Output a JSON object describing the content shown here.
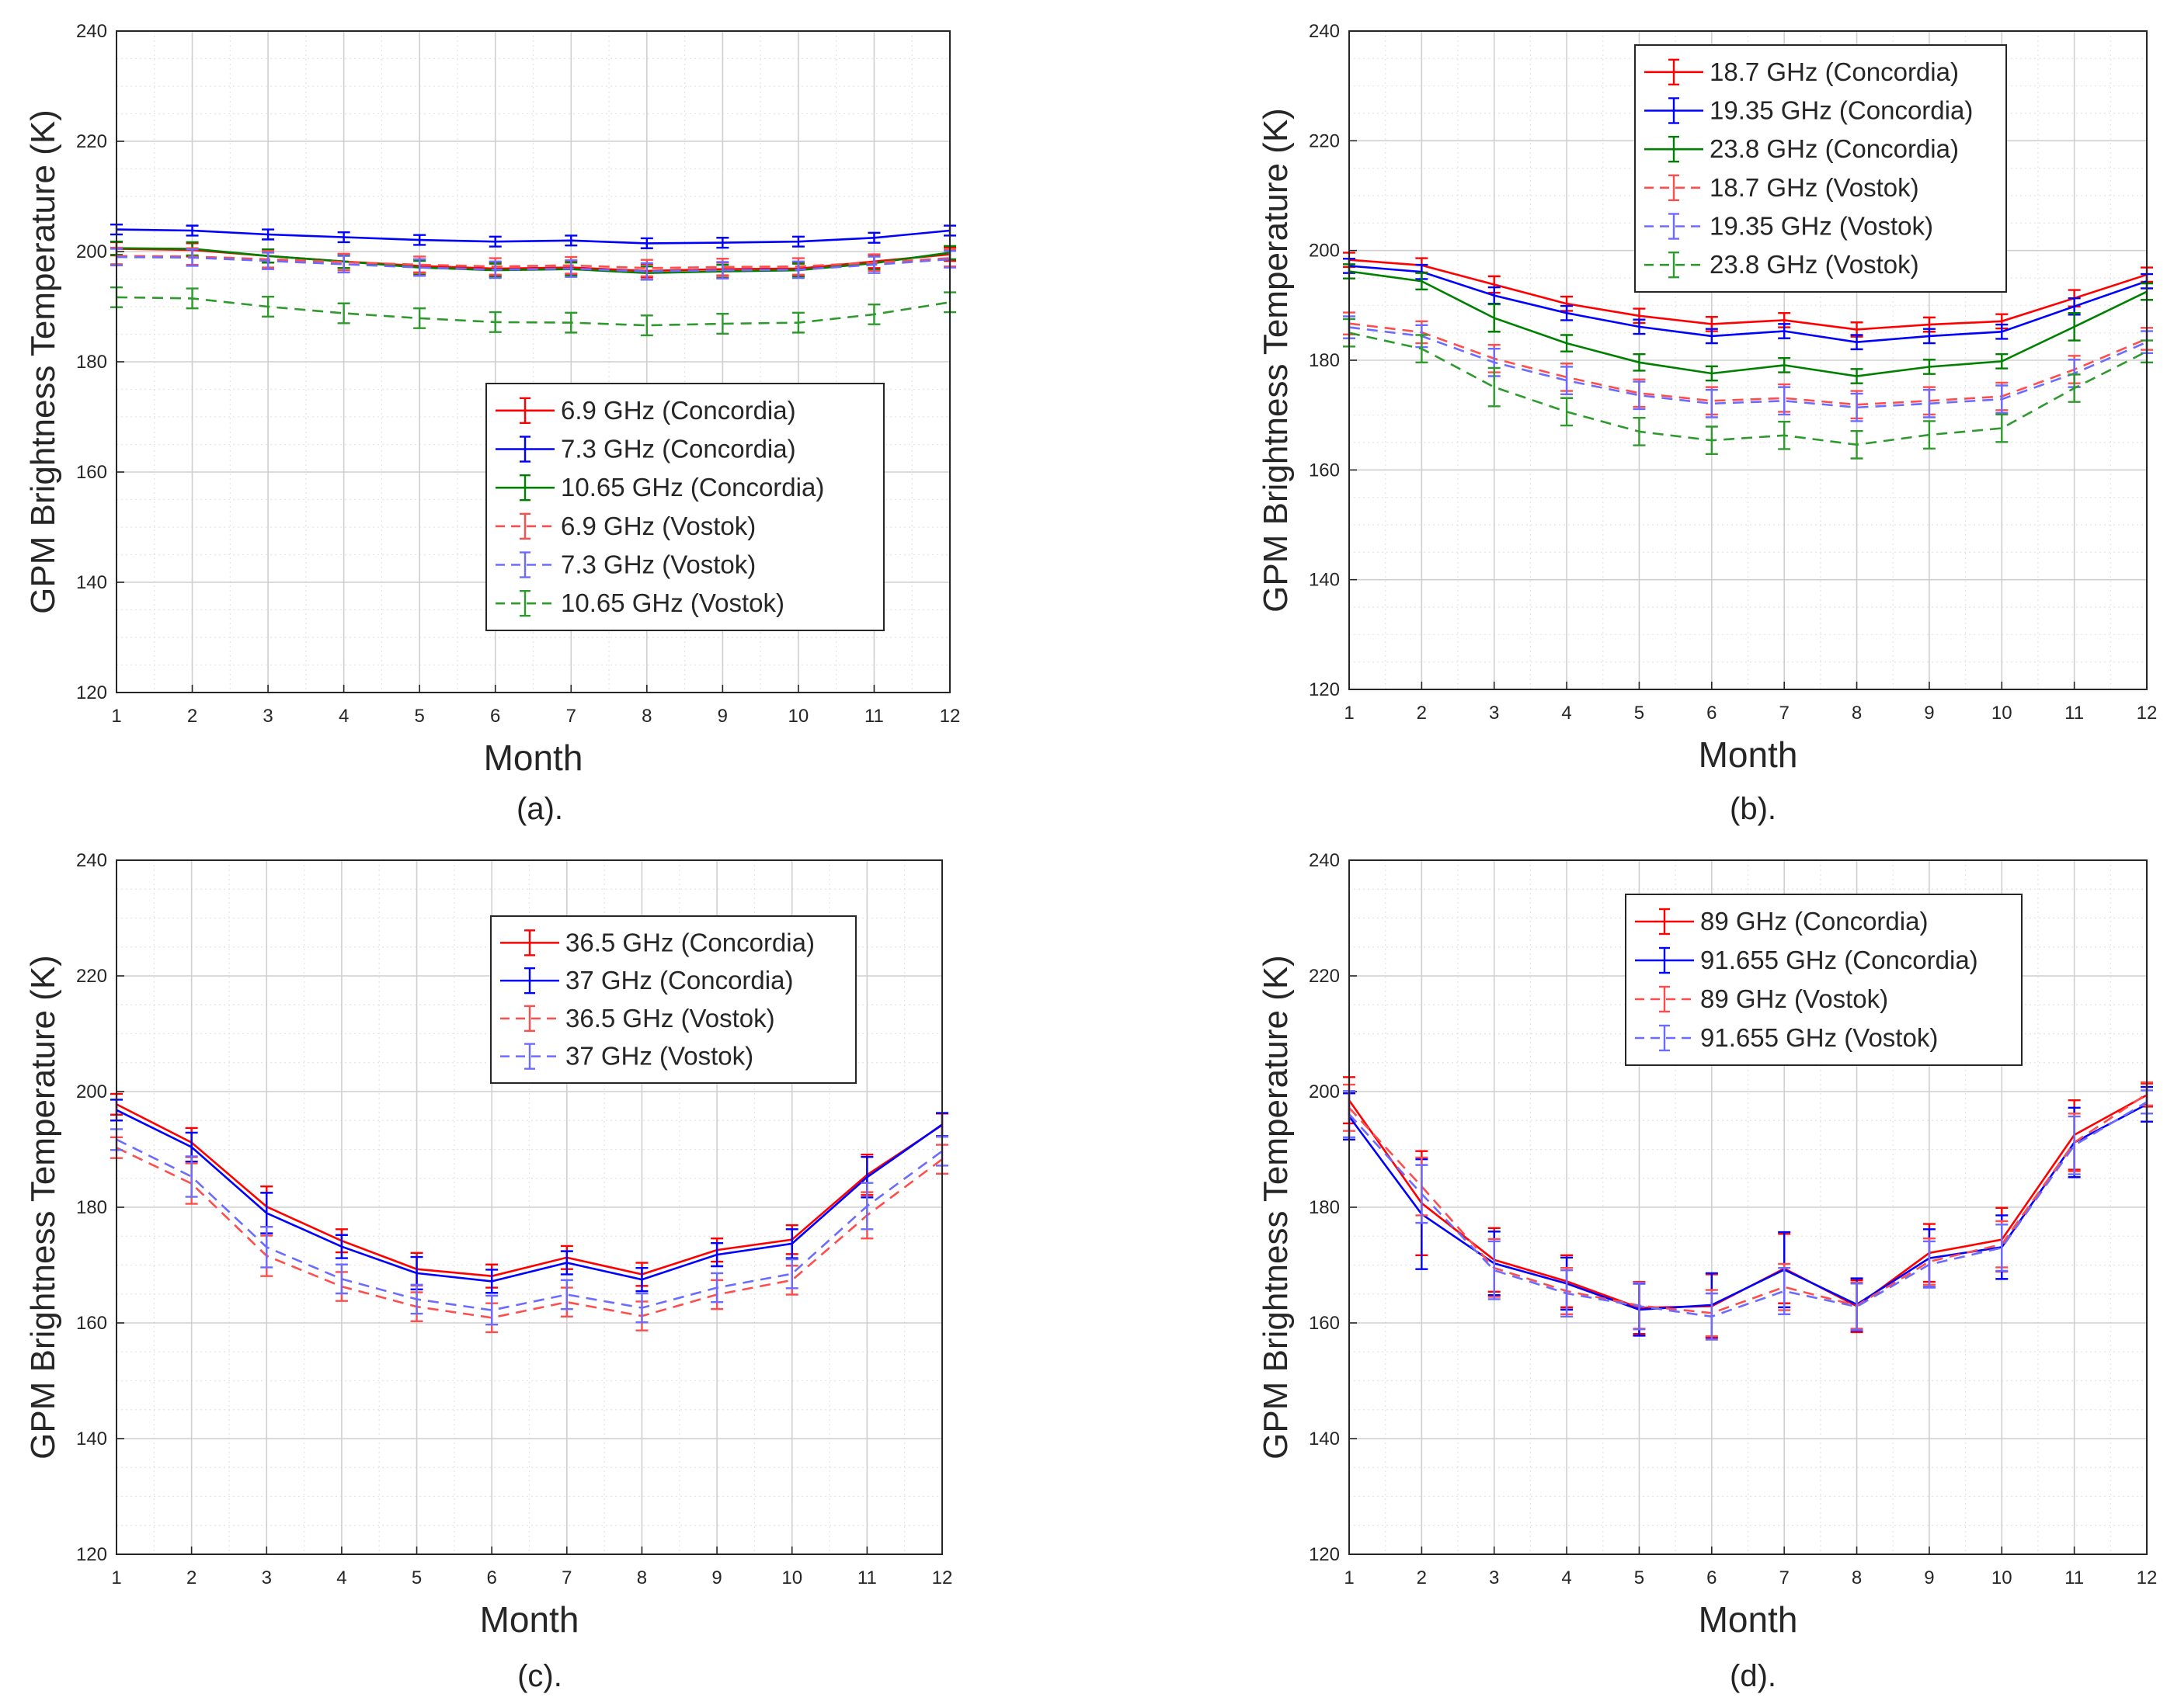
{
  "figure": {
    "charts": [
      {
        "caption": "(a)."
      },
      {
        "caption": "(b)."
      },
      {
        "caption": "(c)."
      },
      {
        "caption": "(d)."
      }
    ]
  },
  "chart_data": [
    {
      "type": "line",
      "panel": "(a).",
      "title": "",
      "xlabel": "Month",
      "ylabel": "GPM Brightness Temperature (K)",
      "x": [
        1,
        2,
        3,
        4,
        5,
        6,
        7,
        8,
        9,
        10,
        11,
        12
      ],
      "xlim": [
        1,
        12
      ],
      "ylim": [
        120,
        240
      ],
      "yticks": [
        120,
        140,
        160,
        180,
        200,
        220,
        240
      ],
      "grid": true,
      "legend_position": "center-right",
      "series": [
        {
          "name": "6.9 GHz (Concordia)",
          "color": "#ff0000",
          "dash": false,
          "values": [
            200.5,
            200.3,
            199.2,
            198.2,
            197.4,
            196.9,
            197.1,
            196.5,
            196.8,
            196.9,
            198.2,
            199.5
          ],
          "error": [
            1.2,
            1.2,
            1.2,
            1.2,
            1.2,
            1.2,
            1.2,
            1.2,
            1.2,
            1.2,
            1.2,
            1.2
          ]
        },
        {
          "name": "7.3 GHz (Concordia)",
          "color": "#0000ff",
          "dash": false,
          "values": [
            204,
            203.8,
            203.1,
            202.6,
            202.1,
            201.8,
            202,
            201.5,
            201.6,
            201.8,
            202.5,
            203.8
          ],
          "error": [
            0.9,
            0.9,
            0.9,
            0.9,
            0.9,
            0.9,
            0.9,
            0.9,
            0.9,
            0.9,
            0.9,
            0.9
          ]
        },
        {
          "name": "10.65 GHz (Concordia)",
          "color": "#008000",
          "dash": false,
          "values": [
            200.6,
            200.5,
            199.2,
            198.2,
            197.1,
            196.6,
            196.8,
            196.1,
            196.4,
            196.6,
            197.9,
            199.8
          ],
          "error": [
            1.2,
            1.2,
            1.2,
            1.2,
            1.2,
            1.2,
            1.2,
            1.2,
            1.2,
            1.2,
            1.2,
            1.2
          ]
        },
        {
          "name": "6.9 GHz (Vostok)",
          "color": "#ff4d4d",
          "dash": true,
          "values": [
            199.2,
            199.1,
            198.6,
            198.1,
            197.6,
            197.3,
            197.5,
            197,
            197.2,
            197.3,
            198,
            198.8
          ],
          "error": [
            1.5,
            1.5,
            1.5,
            1.5,
            1.5,
            1.5,
            1.5,
            1.5,
            1.5,
            1.5,
            1.5,
            1.5
          ]
        },
        {
          "name": "7.3 GHz (Vostok)",
          "color": "#6b6bff",
          "dash": true,
          "values": [
            199,
            198.9,
            198.3,
            197.7,
            197.1,
            196.7,
            196.9,
            196.4,
            196.6,
            196.7,
            197.6,
            198.6
          ],
          "error": [
            1.5,
            1.5,
            1.5,
            1.5,
            1.5,
            1.5,
            1.5,
            1.5,
            1.5,
            1.5,
            1.5,
            1.5
          ]
        },
        {
          "name": "10.65 GHz (Vostok)",
          "color": "#2e9a2e",
          "dash": true,
          "values": [
            191.7,
            191.5,
            190,
            188.8,
            187.9,
            187.2,
            187.1,
            186.6,
            186.9,
            187.1,
            188.6,
            190.8
          ],
          "error": [
            1.8,
            1.8,
            1.8,
            1.8,
            1.8,
            1.8,
            1.8,
            1.8,
            1.8,
            1.8,
            1.8,
            1.8
          ]
        }
      ]
    },
    {
      "type": "line",
      "panel": "(b).",
      "title": "",
      "xlabel": "Month",
      "ylabel": "GPM Brightness Temperature (K)",
      "x": [
        1,
        2,
        3,
        4,
        5,
        6,
        7,
        8,
        9,
        10,
        11,
        12
      ],
      "xlim": [
        1,
        12
      ],
      "ylim": [
        120,
        240
      ],
      "yticks": [
        120,
        140,
        160,
        180,
        200,
        220,
        240
      ],
      "grid": true,
      "legend_position": "top-center",
      "series": [
        {
          "name": "18.7 GHz (Concordia)",
          "color": "#ff0000",
          "dash": false,
          "values": [
            198.3,
            197.3,
            193.8,
            190.3,
            188.1,
            186.6,
            187.3,
            185.6,
            186.5,
            187.1,
            191.3,
            195.6
          ],
          "error": [
            1.3,
            1.3,
            1.5,
            1.3,
            1.3,
            1.3,
            1.3,
            1.3,
            1.3,
            1.3,
            1.5,
            1.3
          ]
        },
        {
          "name": "19.35 GHz (Concordia)",
          "color": "#0000ff",
          "dash": false,
          "values": [
            197.2,
            196.1,
            191.8,
            188.6,
            186.1,
            184.4,
            185.3,
            183.3,
            184.4,
            185.2,
            189.8,
            194.4
          ],
          "error": [
            1.3,
            1.3,
            1.5,
            1.3,
            1.3,
            1.3,
            1.3,
            1.3,
            1.3,
            1.3,
            1.5,
            1.3
          ]
        },
        {
          "name": "23.8 GHz (Concordia)",
          "color": "#008000",
          "dash": false,
          "values": [
            196.2,
            194.4,
            187.7,
            183.1,
            179.6,
            177.6,
            179.1,
            177.1,
            178.8,
            179.8,
            186.1,
            192.5
          ],
          "error": [
            1.3,
            1.5,
            2.5,
            1.5,
            1.5,
            1.3,
            1.3,
            1.3,
            1.3,
            1.3,
            2.5,
            1.5
          ]
        },
        {
          "name": "18.7 GHz (Vostok)",
          "color": "#ff4d4d",
          "dash": true,
          "values": [
            186.7,
            185.1,
            180.3,
            176.9,
            174,
            172.6,
            173.1,
            171.9,
            172.6,
            173.4,
            178.3,
            183.9
          ],
          "error": [
            2,
            2,
            2.5,
            2.5,
            2.5,
            2.5,
            2.5,
            2.5,
            2.5,
            2.5,
            2.5,
            2
          ]
        },
        {
          "name": "19.35 GHz (Vostok)",
          "color": "#6b6bff",
          "dash": true,
          "values": [
            186,
            184.4,
            179.6,
            176.3,
            173.6,
            172.1,
            172.6,
            171.4,
            172.1,
            172.9,
            177.6,
            183.3
          ],
          "error": [
            2,
            2,
            2.5,
            2.5,
            2.5,
            2.5,
            2.5,
            2.5,
            2.5,
            2.5,
            2.5,
            2
          ]
        },
        {
          "name": "23.8 GHz (Vostok)",
          "color": "#2e9a2e",
          "dash": true,
          "values": [
            185,
            182.1,
            175.1,
            170.6,
            167,
            165.4,
            166.3,
            164.6,
            166.4,
            167.6,
            174.9,
            181.6
          ],
          "error": [
            2.5,
            2.5,
            3.5,
            2.5,
            2.5,
            2.5,
            2.5,
            2.5,
            2.5,
            2.5,
            2.5,
            2
          ]
        }
      ]
    },
    {
      "type": "line",
      "panel": "(c).",
      "title": "",
      "xlabel": "Month",
      "ylabel": "GPM Brightness Temperature (K)",
      "x": [
        1,
        2,
        3,
        4,
        5,
        6,
        7,
        8,
        9,
        10,
        11,
        12
      ],
      "xlim": [
        1,
        12
      ],
      "ylim": [
        120,
        240
      ],
      "yticks": [
        120,
        140,
        160,
        180,
        200,
        220,
        240
      ],
      "grid": true,
      "legend_position": "top-center",
      "series": [
        {
          "name": "36.5 GHz (Concordia)",
          "color": "#ff0000",
          "dash": false,
          "values": [
            197.8,
            191.2,
            180.1,
            174.2,
            169.3,
            168.1,
            171.3,
            168.4,
            172.6,
            174.4,
            185.6,
            194.2
          ],
          "error": [
            1.8,
            2.5,
            3.5,
            2,
            2.8,
            2,
            2,
            2,
            2,
            2.5,
            3.5,
            2
          ]
        },
        {
          "name": "37 GHz (Concordia)",
          "color": "#0000ff",
          "dash": false,
          "values": [
            196.8,
            190.4,
            179,
            173.2,
            168.6,
            167.2,
            170.4,
            167.5,
            171.8,
            173.7,
            185.2,
            194.3
          ],
          "error": [
            1.8,
            2.5,
            3.5,
            2,
            2.8,
            2,
            2,
            2,
            2,
            2.5,
            3.5,
            2
          ]
        },
        {
          "name": "36.5 GHz (Vostok)",
          "color": "#ff4d4d",
          "dash": true,
          "values": [
            190.3,
            184.1,
            171.6,
            166.3,
            162.8,
            160.9,
            163.6,
            161.2,
            164.9,
            167.4,
            178.6,
            188.3
          ],
          "error": [
            1.8,
            3.5,
            3.5,
            2.5,
            2.5,
            2.5,
            2.5,
            2.5,
            2.5,
            2.5,
            4,
            2.5
          ]
        },
        {
          "name": "37 GHz (Vostok)",
          "color": "#6b6bff",
          "dash": true,
          "values": [
            191.7,
            185.3,
            173.1,
            167.6,
            164.1,
            162.2,
            164.9,
            162.6,
            166.1,
            168.5,
            180.2,
            189.7
          ],
          "error": [
            1.8,
            3.5,
            3.5,
            2.5,
            2.5,
            2.5,
            2.5,
            2.5,
            2.5,
            2.5,
            4,
            2.5
          ]
        }
      ]
    },
    {
      "type": "line",
      "panel": "(d).",
      "title": "",
      "xlabel": "Month",
      "ylabel": "GPM Brightness Temperature (K)",
      "x": [
        1,
        2,
        3,
        4,
        5,
        6,
        7,
        8,
        9,
        10,
        11,
        12
      ],
      "xlim": [
        1,
        12
      ],
      "ylim": [
        120,
        240
      ],
      "yticks": [
        120,
        140,
        160,
        180,
        200,
        220,
        240
      ],
      "grid": true,
      "legend_position": "top-center",
      "series": [
        {
          "name": "89 GHz (Concordia)",
          "color": "#ff0000",
          "dash": false,
          "values": [
            198.5,
            180.7,
            170.9,
            167.2,
            162.6,
            162.9,
            169.4,
            162.9,
            172.1,
            174.4,
            192.5,
            199.4
          ],
          "error": [
            4,
            9,
            5.5,
            4.5,
            4.5,
            5.5,
            6,
            4.5,
            5,
            5.5,
            6,
            2
          ]
        },
        {
          "name": "91.655 GHz (Concordia)",
          "color": "#0000ff",
          "dash": false,
          "values": [
            195.7,
            178.8,
            170.3,
            166.8,
            162.3,
            163.1,
            169.2,
            163.2,
            171.2,
            173.1,
            191.2,
            197.8
          ],
          "error": [
            4,
            9.5,
            5.5,
            4.5,
            4.5,
            5.5,
            6.5,
            4.5,
            5,
            5.5,
            6,
            3
          ]
        },
        {
          "name": "89 GHz (Vostok)",
          "color": "#ff4d4d",
          "dash": true,
          "values": [
            197.2,
            183.6,
            169.5,
            165.5,
            163,
            161.7,
            166.2,
            163,
            170.6,
            173.6,
            191.2,
            199.6
          ],
          "error": [
            4,
            5,
            5,
            4,
            4,
            4,
            4,
            4,
            4,
            4,
            5,
            2
          ]
        },
        {
          "name": "91.655 GHz (Vostok)",
          "color": "#6b6bff",
          "dash": true,
          "values": [
            196.1,
            182.3,
            169.1,
            165.1,
            162.9,
            161.1,
            165.5,
            162.8,
            170.1,
            173,
            190.7,
            198.2
          ],
          "error": [
            4,
            5,
            5,
            4,
            4,
            4,
            4,
            4,
            4,
            4,
            5,
            2
          ]
        }
      ]
    }
  ]
}
